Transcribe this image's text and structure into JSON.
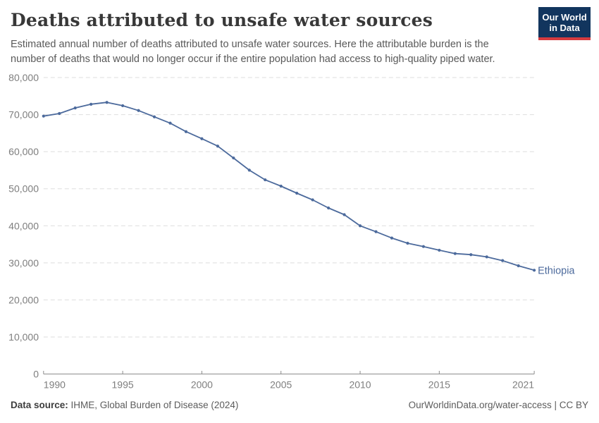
{
  "header": {
    "title": "Deaths attributed to unsafe water sources",
    "subtitle": "Estimated annual number of deaths attributed to unsafe water sources. Here the attributable burden is the number of deaths that would no longer occur if the entire population had access to high-quality piped water.",
    "logo": {
      "line1": "Our World",
      "line2": "in Data",
      "bg_color": "#12355e",
      "accent_color": "#d53b3f"
    }
  },
  "chart_data": {
    "type": "line",
    "title": "Deaths attributed to unsafe water sources",
    "xlabel": "",
    "ylabel": "",
    "xlim": [
      1990,
      2021
    ],
    "ylim": [
      0,
      80000
    ],
    "x_ticks": [
      1990,
      1995,
      2000,
      2005,
      2010,
      2015,
      2021
    ],
    "y_ticks": [
      0,
      10000,
      20000,
      30000,
      40000,
      50000,
      60000,
      70000,
      80000
    ],
    "grid": "horizontal-dashed",
    "legend_position": "end-of-line-label",
    "x": [
      1990,
      1991,
      1992,
      1993,
      1994,
      1995,
      1996,
      1997,
      1998,
      1999,
      2000,
      2001,
      2002,
      2003,
      2004,
      2005,
      2006,
      2007,
      2008,
      2009,
      2010,
      2011,
      2012,
      2013,
      2014,
      2015,
      2016,
      2017,
      2018,
      2019,
      2020,
      2021
    ],
    "series": [
      {
        "name": "Ethiopia",
        "color": "#4c6a9c",
        "values": [
          69600,
          70300,
          71800,
          72800,
          73300,
          72400,
          71100,
          69400,
          67700,
          65400,
          63500,
          61500,
          58300,
          55000,
          52400,
          50700,
          48800,
          47000,
          44800,
          43000,
          40000,
          38400,
          36700,
          35300,
          34400,
          33400,
          32500,
          32200,
          31600,
          30600,
          29200,
          28000
        ]
      }
    ],
    "axis_color": "#8c8c8c",
    "grid_color": "#dedede",
    "tick_label_color": "#7e7e7e"
  },
  "footer": {
    "source_label": "Data source:",
    "source_value": " IHME, Global Burden of Disease (2024)",
    "link": "OurWorldinData.org/water-access | CC BY"
  }
}
